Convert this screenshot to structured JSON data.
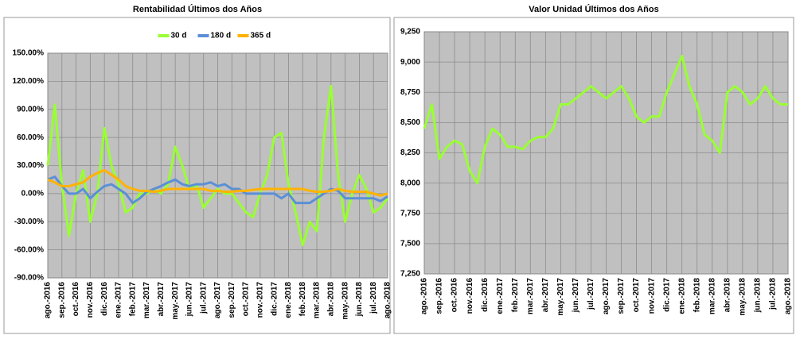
{
  "chart_data": [
    {
      "type": "line",
      "title": "Rentabilidad Últimos dos Años",
      "legend": "top",
      "grid": true,
      "categories": [
        "ago.-2016",
        null,
        "sep.-2016",
        null,
        "oct.-2016",
        null,
        "nov.-2016",
        null,
        "dic.-2016",
        null,
        "ene.-2017",
        null,
        "feb.-2017",
        null,
        "mar.-2017",
        null,
        "abr.-2017",
        null,
        "may.-2017",
        null,
        "jun.-2017",
        null,
        "jul.-2017",
        null,
        "ago.-2017",
        null,
        "sep.-2017",
        null,
        "oct.-2017",
        null,
        "nov.-2017",
        null,
        "dic.-2017",
        null,
        "ene.-2018",
        null,
        "feb.-2018",
        null,
        "mar.-2018",
        null,
        "abr.-2018",
        null,
        "may.-2018",
        null,
        "jun.-2018",
        null,
        "jul.-2018",
        null,
        "ago.-2018"
      ],
      "series": [
        {
          "name": "30 d",
          "color": "#99ff33",
          "values": [
            30,
            95,
            10,
            -45,
            0,
            25,
            -30,
            0,
            70,
            30,
            10,
            -20,
            -15,
            0,
            0,
            5,
            0,
            10,
            50,
            30,
            5,
            10,
            -15,
            -5,
            5,
            0,
            0,
            -10,
            -20,
            -25,
            0,
            20,
            60,
            65,
            10,
            -20,
            -55,
            -30,
            -40,
            60,
            115,
            20,
            -30,
            0,
            20,
            5,
            -20,
            -15,
            -5
          ]
        },
        {
          "name": "180 d",
          "color": "#5b8fd6",
          "values": [
            15,
            18,
            8,
            0,
            0,
            5,
            -5,
            2,
            8,
            10,
            5,
            0,
            -10,
            -5,
            2,
            5,
            8,
            12,
            15,
            10,
            8,
            10,
            10,
            12,
            8,
            10,
            5,
            5,
            0,
            0,
            0,
            0,
            0,
            -5,
            0,
            -10,
            -10,
            -10,
            -5,
            0,
            5,
            3,
            -5,
            -5,
            -5,
            -5,
            -5,
            -8,
            -3
          ]
        },
        {
          "name": "365 d",
          "color": "#ffb300",
          "values": [
            15,
            12,
            8,
            8,
            10,
            12,
            18,
            22,
            25,
            20,
            15,
            8,
            5,
            3,
            3,
            2,
            3,
            5,
            5,
            5,
            5,
            5,
            5,
            3,
            3,
            2,
            2,
            3,
            3,
            4,
            5,
            5,
            5,
            5,
            5,
            5,
            5,
            3,
            2,
            2,
            3,
            5,
            3,
            2,
            2,
            2,
            0,
            -2,
            0
          ]
        }
      ],
      "ylim": [
        -90,
        150
      ],
      "yticks": [
        {
          "value": -90,
          "label": "-90.00%"
        },
        {
          "value": -60,
          "label": "-60.00%"
        },
        {
          "value": -30,
          "label": "-30.00%"
        },
        {
          "value": 0,
          "label": "0.00%"
        },
        {
          "value": 30,
          "label": "30.00%"
        },
        {
          "value": 60,
          "label": "60.00%"
        },
        {
          "value": 90,
          "label": "90.00%"
        },
        {
          "value": 120,
          "label": "120.00%"
        },
        {
          "value": 150,
          "label": "150.00%"
        }
      ]
    },
    {
      "type": "line",
      "title": "Valor Unidad Últimos dos Años",
      "grid": true,
      "categories": [
        "ago.-2016",
        null,
        "sep.-2016",
        null,
        "oct.-2016",
        null,
        "nov.-2016",
        null,
        "dic.-2016",
        null,
        "ene.-2017",
        null,
        "feb.-2017",
        null,
        "mar.-2017",
        null,
        "abr.-2017",
        null,
        "may.-2017",
        null,
        "jun.-2017",
        null,
        "jul.-2017",
        null,
        "ago.-2017",
        null,
        "sep.-2017",
        null,
        "oct.-2017",
        null,
        "nov.-2017",
        null,
        "dic.-2017",
        null,
        "ene.-2018",
        null,
        "feb.-2018",
        null,
        "mar.-2018",
        null,
        "abr.-2018",
        null,
        "may.-2018",
        null,
        "jun.-2018",
        null,
        "jul.-2018",
        null,
        "ago.-2018"
      ],
      "series": [
        {
          "color": "#99ff33",
          "values": [
            8450,
            8650,
            8200,
            8300,
            8350,
            8320,
            8100,
            8000,
            8300,
            8450,
            8400,
            8300,
            8300,
            8280,
            8350,
            8380,
            8380,
            8450,
            8650,
            8650,
            8700,
            8750,
            8800,
            8750,
            8700,
            8750,
            8800,
            8700,
            8550,
            8500,
            8550,
            8550,
            8750,
            8900,
            9050,
            8800,
            8650,
            8400,
            8350,
            8250,
            8750,
            8800,
            8750,
            8650,
            8700,
            8800,
            8700,
            8650,
            8650
          ]
        }
      ],
      "ylim": [
        7250,
        9250
      ],
      "yticks": [
        {
          "value": 7250,
          "label": "7,250"
        },
        {
          "value": 7500,
          "label": "7,500"
        },
        {
          "value": 7750,
          "label": "7,750"
        },
        {
          "value": 8000,
          "label": "8,000"
        },
        {
          "value": 8250,
          "label": "8,250"
        },
        {
          "value": 8500,
          "label": "8,500"
        },
        {
          "value": 8750,
          "label": "8,750"
        },
        {
          "value": 9000,
          "label": "9,000"
        },
        {
          "value": 9250,
          "label": "9,250"
        }
      ]
    }
  ]
}
